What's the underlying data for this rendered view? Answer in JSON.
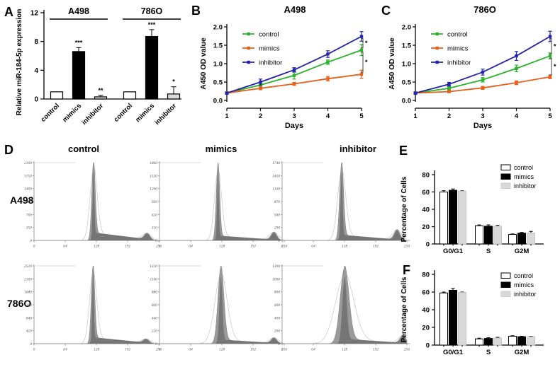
{
  "colors": {
    "control_line": "#2bb32b",
    "mimics_line": "#e85f1b",
    "inhibitor_line": "#2323ad",
    "bar_white": "#ffffff",
    "bar_black": "#000000",
    "bar_gray": "#d9d9d9",
    "hist_fill": "#9a9a9a",
    "hist_dark": "#757575",
    "hist_outline": "#c8c8c8",
    "axis": "#000000"
  },
  "chart_data": [
    {
      "id": "A",
      "type": "bar",
      "panel_label": "A",
      "ylabel": "Relative miR-184-5p expression",
      "ylim": [
        0,
        12
      ],
      "yticks": [
        0,
        4,
        8,
        12
      ],
      "group_names": [
        "A498",
        "786O"
      ],
      "categories": [
        "control",
        "mimics",
        "inhibitor",
        "control",
        "mimics",
        "inhibitor"
      ],
      "values": [
        1.0,
        6.6,
        0.3,
        1.0,
        8.7,
        0.7
      ],
      "errors": [
        0.0,
        0.55,
        0.2,
        0.0,
        0.95,
        1.0
      ],
      "sig": [
        "",
        "***",
        "**",
        "",
        "***",
        "*"
      ],
      "bar_fills": [
        "#ffffff",
        "#000000",
        "#d9d9d9",
        "#ffffff",
        "#000000",
        "#d9d9d9"
      ]
    },
    {
      "id": "B",
      "type": "line",
      "panel_label": "B",
      "title": "A498",
      "ylabel": "A450 OD value",
      "xlabel": "Days",
      "ylim": [
        0,
        2.0
      ],
      "yticks": [
        0.0,
        0.5,
        1.0,
        1.5,
        2.0
      ],
      "x": [
        1,
        2,
        3,
        4,
        5
      ],
      "series": [
        {
          "name": "control",
          "color": "#2bb32b",
          "values": [
            0.2,
            0.42,
            0.68,
            1.04,
            1.37
          ],
          "errors": [
            0.03,
            0.05,
            0.1,
            0.06,
            0.15
          ]
        },
        {
          "name": "mimics",
          "color": "#e85f1b",
          "values": [
            0.2,
            0.33,
            0.45,
            0.59,
            0.71
          ],
          "errors": [
            0.02,
            0.04,
            0.04,
            0.06,
            0.11
          ]
        },
        {
          "name": "inhibitor",
          "color": "#2323ad",
          "values": [
            0.2,
            0.5,
            0.83,
            1.26,
            1.74
          ],
          "errors": [
            0.03,
            0.08,
            0.06,
            0.09,
            0.13
          ]
        }
      ],
      "sig_brackets": [
        {
          "between": [
            "inhibitor",
            "control"
          ],
          "label": "*"
        },
        {
          "between": [
            "control",
            "mimics"
          ],
          "label": "*"
        }
      ],
      "legend_position": "top-left"
    },
    {
      "id": "C",
      "type": "line",
      "panel_label": "C",
      "title": "786O",
      "ylabel": "A450 OD value",
      "xlabel": "Days",
      "ylim": [
        0,
        2.0
      ],
      "yticks": [
        0.0,
        0.5,
        1.0,
        1.5,
        2.0
      ],
      "x": [
        1,
        2,
        3,
        4,
        5
      ],
      "series": [
        {
          "name": "control",
          "color": "#2bb32b",
          "values": [
            0.2,
            0.33,
            0.56,
            0.87,
            1.21
          ],
          "errors": [
            0.02,
            0.04,
            0.06,
            0.09,
            0.08
          ]
        },
        {
          "name": "mimics",
          "color": "#e85f1b",
          "values": [
            0.2,
            0.24,
            0.34,
            0.48,
            0.64
          ],
          "errors": [
            0.02,
            0.03,
            0.04,
            0.05,
            0.05
          ]
        },
        {
          "name": "inhibitor",
          "color": "#2323ad",
          "values": [
            0.2,
            0.44,
            0.77,
            1.21,
            1.74
          ],
          "errors": [
            0.03,
            0.05,
            0.08,
            0.12,
            0.14
          ]
        }
      ],
      "sig_brackets": [
        {
          "between": [
            "inhibitor",
            "control"
          ],
          "label": "*"
        },
        {
          "between": [
            "control",
            "mimics"
          ],
          "label": "*"
        }
      ],
      "legend_position": "top-left"
    },
    {
      "id": "D",
      "type": "flow-histograms",
      "panel_label": "D",
      "col_headers": [
        "control",
        "mimics",
        "inhibitor"
      ],
      "row_labels": [
        "A498",
        "786O"
      ],
      "xticks": [
        0,
        64,
        128,
        192,
        256
      ],
      "cells": [
        {
          "row": "A498",
          "col": "control",
          "ymax": 2100,
          "yticks": [
            0,
            350,
            700,
            1050,
            1400,
            1750,
            2100
          ],
          "shape": {
            "g1": 122,
            "w1": 3.5,
            "g2": 232,
            "g2h": 0.08,
            "p0": 0.1,
            "peak": 0.98
          }
        },
        {
          "row": "A498",
          "col": "mimics",
          "ymax": 1860,
          "yticks": [
            0,
            310,
            620,
            930,
            1240,
            1550,
            1860
          ],
          "shape": {
            "g1": 120,
            "w1": 3.5,
            "g2": 235,
            "g2h": 0.1,
            "p0": 0.06,
            "peak": 0.96
          }
        },
        {
          "row": "A498",
          "col": "inhibitor",
          "ymax": 1740,
          "yticks": [
            0,
            290,
            580,
            870,
            1160,
            1450,
            1740
          ],
          "shape": {
            "g1": 122,
            "w1": 4.0,
            "g2": 236,
            "g2h": 0.13,
            "p0": 0.07,
            "peak": 0.96
          }
        },
        {
          "row": "786O",
          "col": "control",
          "ymax": 2520,
          "yticks": [
            0,
            420,
            840,
            1260,
            1680,
            2100,
            2520
          ],
          "shape": {
            "g1": 121,
            "w1": 3.5,
            "g2": 230,
            "g2h": 0.05,
            "p0": 0.08,
            "peak": 0.98
          }
        },
        {
          "row": "786O",
          "col": "mimics",
          "ymax": 1320,
          "yticks": [
            0,
            220,
            440,
            660,
            880,
            1100,
            1320
          ],
          "shape": {
            "g1": 126,
            "w1": 6.0,
            "g2": 235,
            "g2h": 0.07,
            "p0": 0.05,
            "peak": 0.96
          }
        },
        {
          "row": "786O",
          "col": "inhibitor",
          "ymax": 1200,
          "yticks": [
            0,
            200,
            400,
            600,
            800,
            1000,
            1200
          ],
          "shape": {
            "g1": 128,
            "w1": 9.0,
            "g2": 248,
            "g2h": 0.1,
            "p0": 0.06,
            "peak": 0.95
          }
        }
      ]
    },
    {
      "id": "E",
      "type": "bar",
      "panel_label": "E",
      "ylabel": "Percentage of Cells",
      "ylim": [
        0,
        80
      ],
      "yticks": [
        0,
        20,
        40,
        60,
        80
      ],
      "categories": [
        "G0/G1",
        "S",
        "G2M"
      ],
      "series": [
        {
          "name": "control",
          "fill": "#ffffff",
          "stroke": "#000000",
          "values": [
            60,
            21,
            11
          ],
          "errors": [
            1.5,
            1.0,
            0.6
          ]
        },
        {
          "name": "mimics",
          "fill": "#000000",
          "stroke": "#000000",
          "values": [
            62,
            20.5,
            12.5
          ],
          "errors": [
            1.5,
            1.5,
            0.8
          ]
        },
        {
          "name": "inhibitor",
          "fill": "#d9d9d9",
          "stroke": "#c4c4c4",
          "values": [
            61,
            20.5,
            12.5
          ],
          "errors": [
            0.5,
            1.0,
            2.0
          ]
        }
      ],
      "legend_position": "top-right"
    },
    {
      "id": "F",
      "type": "bar",
      "panel_label": "F",
      "ylabel": "Percentage of Cells",
      "ylim": [
        0,
        80
      ],
      "yticks": [
        0,
        20,
        40,
        60,
        80
      ],
      "categories": [
        "G0/G1",
        "S",
        "G2M"
      ],
      "series": [
        {
          "name": "control",
          "fill": "#ffffff",
          "stroke": "#000000",
          "values": [
            59,
            7,
            10
          ],
          "errors": [
            1.0,
            0.8,
            0.6
          ]
        },
        {
          "name": "mimics",
          "fill": "#000000",
          "stroke": "#000000",
          "values": [
            62,
            7.5,
            9.5
          ],
          "errors": [
            2.0,
            0.8,
            0.5
          ]
        },
        {
          "name": "inhibitor",
          "fill": "#d9d9d9",
          "stroke": "#c4c4c4",
          "values": [
            59.5,
            8,
            9.5
          ],
          "errors": [
            0.5,
            0.8,
            0.5
          ]
        }
      ],
      "legend_position": "top-right"
    }
  ]
}
